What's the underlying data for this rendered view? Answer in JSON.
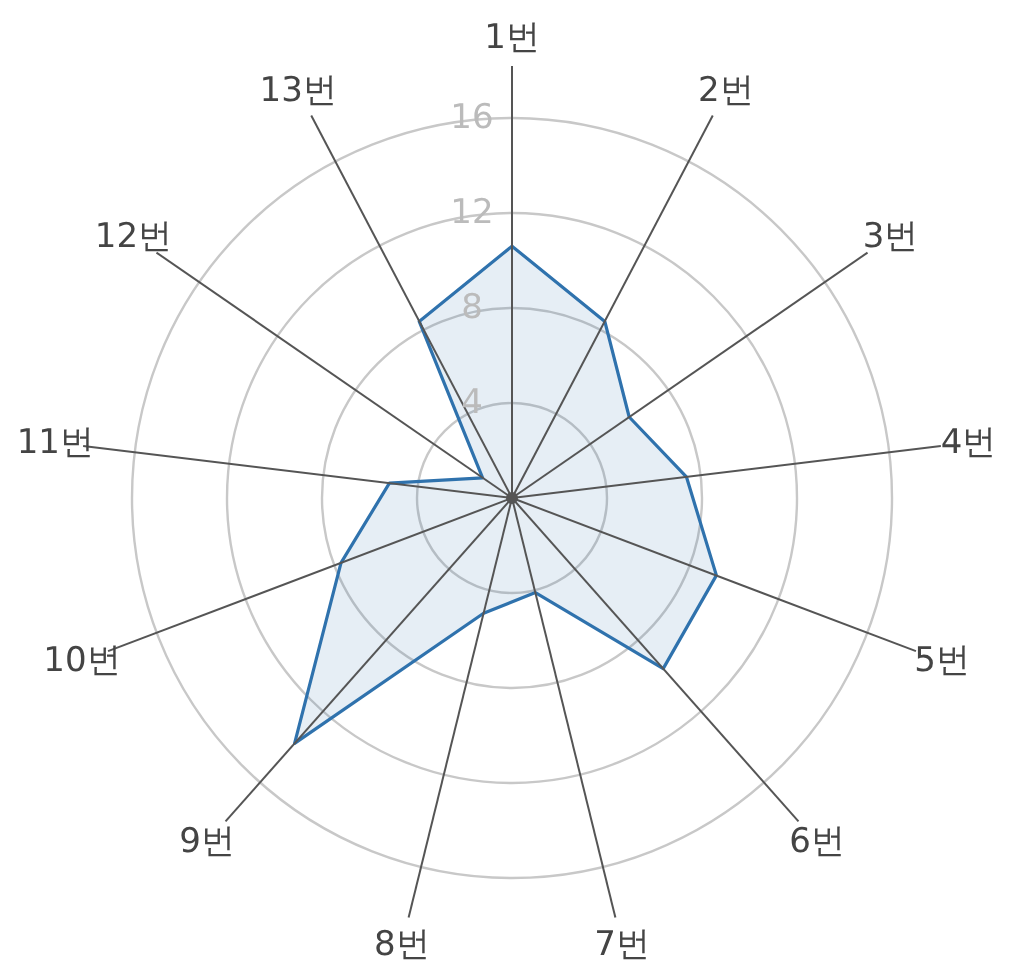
{
  "chart_data": {
    "type": "radar",
    "categories": [
      "1번",
      "2번",
      "3번",
      "4번",
      "5번",
      "6번",
      "7번",
      "8번",
      "9번",
      "10번",
      "11번",
      "12번",
      "13번"
    ],
    "series": [
      {
        "color": "#2f72ad",
        "values": [
          10.6,
          8.4,
          6.0,
          7.4,
          9.2,
          9.6,
          4.1,
          5.0,
          13.8,
          7.7,
          5.2,
          1.5,
          8.4
        ]
      }
    ],
    "ylim": [
      0,
      16
    ],
    "yticks": [
      4,
      8,
      12,
      16
    ],
    "grid": true
  }
}
